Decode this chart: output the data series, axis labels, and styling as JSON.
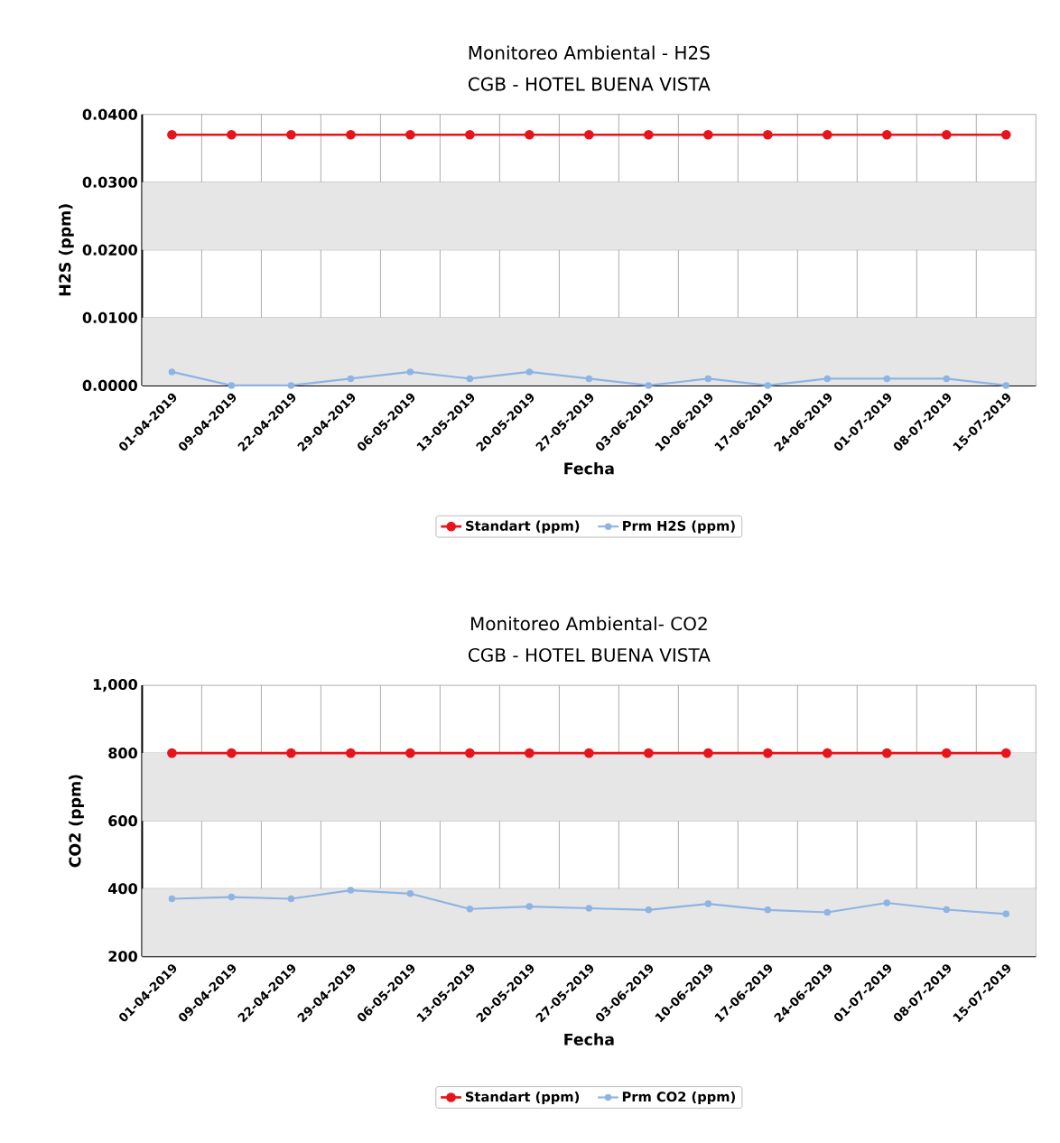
{
  "chart_data": [
    {
      "type": "line",
      "title": "Monitoreo Ambiental - H2S",
      "subtitle": "CGB - HOTEL BUENA VISTA",
      "xlabel": "Fecha",
      "ylabel": "H2S (ppm)",
      "categories": [
        "01-04-2019",
        "09-04-2019",
        "22-04-2019",
        "29-04-2019",
        "06-05-2019",
        "13-05-2019",
        "20-05-2019",
        "27-05-2019",
        "03-06-2019",
        "10-06-2019",
        "17-06-2019",
        "24-06-2019",
        "01-07-2019",
        "08-07-2019",
        "15-07-2019"
      ],
      "series": [
        {
          "name": "Standart (ppm)",
          "color": "#e8141b",
          "values": [
            0.037,
            0.037,
            0.037,
            0.037,
            0.037,
            0.037,
            0.037,
            0.037,
            0.037,
            0.037,
            0.037,
            0.037,
            0.037,
            0.037,
            0.037
          ]
        },
        {
          "name": "Prm H2S (ppm)",
          "color": "#8eb4e3",
          "values": [
            0.002,
            0,
            0,
            0.001,
            0.002,
            0.001,
            0.002,
            0.001,
            0,
            0.001,
            0,
            0.001,
            0.001,
            0.001,
            0
          ]
        }
      ],
      "ylim": [
        0,
        0.04
      ],
      "yticks": [
        {
          "value": 0,
          "label": "0.0000"
        },
        {
          "value": 0.01,
          "label": "0.0100"
        },
        {
          "value": 0.02,
          "label": "0.0200"
        },
        {
          "value": 0.03,
          "label": "0.0300"
        },
        {
          "value": 0.04,
          "label": "0.0400"
        }
      ],
      "bands": [
        {
          "axis": "y",
          "from": 0,
          "to": 0.01,
          "color": "#e6e6e6"
        },
        {
          "axis": "y",
          "from": 0.02,
          "to": 0.03,
          "color": "#e6e6e6"
        }
      ],
      "grid": true,
      "legend": "bottom",
      "marker": "circle",
      "line_style": "solid"
    },
    {
      "type": "line",
      "title": "Monitoreo Ambiental- CO2",
      "subtitle": "CGB - HOTEL BUENA VISTA",
      "xlabel": "Fecha",
      "ylabel": "CO2 (ppm)",
      "categories": [
        "01-04-2019",
        "09-04-2019",
        "22-04-2019",
        "29-04-2019",
        "06-05-2019",
        "13-05-2019",
        "20-05-2019",
        "27-05-2019",
        "03-06-2019",
        "10-06-2019",
        "17-06-2019",
        "24-06-2019",
        "01-07-2019",
        "08-07-2019",
        "15-07-2019"
      ],
      "series": [
        {
          "name": "Standart (ppm)",
          "color": "#e8141b",
          "values": [
            800,
            800,
            800,
            800,
            800,
            800,
            800,
            800,
            800,
            800,
            800,
            800,
            800,
            800,
            800
          ]
        },
        {
          "name": "Prm CO2 (ppm)",
          "color": "#8eb4e3",
          "values": [
            370,
            375,
            370,
            395,
            385,
            340,
            347,
            342,
            337,
            355,
            337,
            330,
            358,
            338,
            325
          ]
        }
      ],
      "ylim": [
        200,
        1000
      ],
      "yticks": [
        200,
        400,
        600,
        800,
        {
          "value": 1000,
          "label": "1,000"
        }
      ],
      "bands": [
        {
          "axis": "y",
          "from": 200,
          "to": 400,
          "color": "#e6e6e6"
        },
        {
          "axis": "y",
          "from": 600,
          "to": 800,
          "color": "#e6e6e6"
        }
      ],
      "grid": true,
      "legend": "bottom",
      "marker": "circle",
      "line_style": "solid"
    }
  ]
}
